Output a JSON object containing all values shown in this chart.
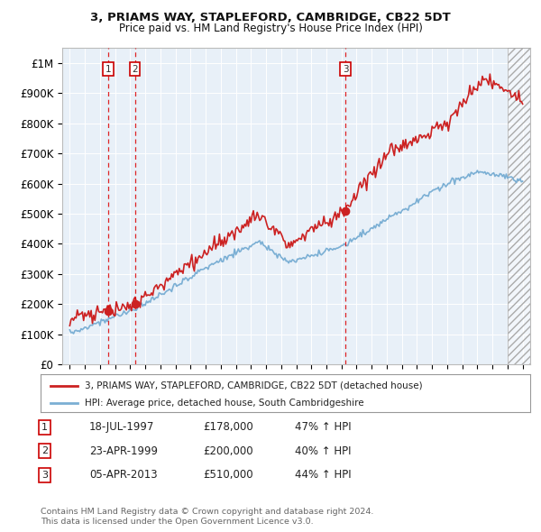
{
  "title1": "3, PRIAMS WAY, STAPLEFORD, CAMBRIDGE, CB22 5DT",
  "title2": "Price paid vs. HM Land Registry's House Price Index (HPI)",
  "ylabel_ticks": [
    "£0",
    "£100K",
    "£200K",
    "£300K",
    "£400K",
    "£500K",
    "£600K",
    "£700K",
    "£800K",
    "£900K",
    "£1M"
  ],
  "ytick_values": [
    0,
    100000,
    200000,
    300000,
    400000,
    500000,
    600000,
    700000,
    800000,
    900000,
    1000000
  ],
  "xlim": [
    1994.5,
    2025.5
  ],
  "ylim": [
    0,
    1050000
  ],
  "plot_bg": "#e8f0f8",
  "hpi_color": "#7bafd4",
  "price_color": "#cc2222",
  "hatch_start": 2024.0,
  "sale_dates": [
    1997.54,
    1999.31,
    2013.26
  ],
  "sale_prices": [
    178000,
    200000,
    510000
  ],
  "sale_labels": [
    "1",
    "2",
    "3"
  ],
  "legend_line1": "3, PRIAMS WAY, STAPLEFORD, CAMBRIDGE, CB22 5DT (detached house)",
  "legend_line2": "HPI: Average price, detached house, South Cambridgeshire",
  "table_rows": [
    [
      "1",
      "18-JUL-1997",
      "£178,000",
      "47% ↑ HPI"
    ],
    [
      "2",
      "23-APR-1999",
      "£200,000",
      "40% ↑ HPI"
    ],
    [
      "3",
      "05-APR-2013",
      "£510,000",
      "44% ↑ HPI"
    ]
  ],
  "footnote1": "Contains HM Land Registry data © Crown copyright and database right 2024.",
  "footnote2": "This data is licensed under the Open Government Licence v3.0."
}
